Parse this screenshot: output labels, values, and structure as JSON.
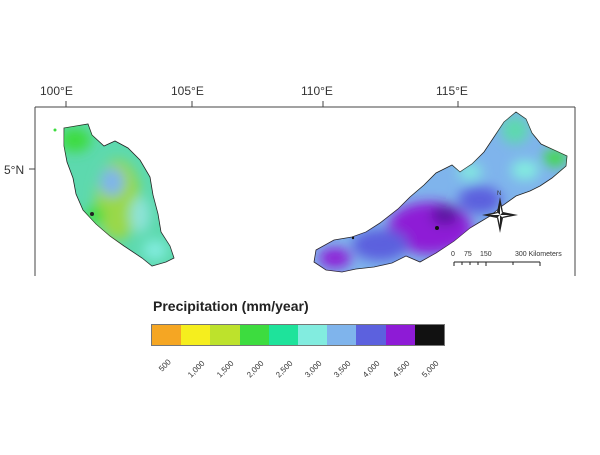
{
  "map": {
    "lon_labels": [
      "100°E",
      "105°E",
      "110°E",
      "115°E"
    ],
    "lat_label": "5°N",
    "north_arrow_letter": "N",
    "scale_bar": {
      "ticks": [
        "0",
        "75",
        "150",
        "300 Kilometers"
      ]
    }
  },
  "legend": {
    "title": "Precipitation (mm/year)",
    "classes": [
      {
        "label": "500",
        "color": "#f5a623"
      },
      {
        "label": "1,000",
        "color": "#f5ee1e"
      },
      {
        "label": "1,500",
        "color": "#bde22c"
      },
      {
        "label": "2,000",
        "color": "#3ddc3f"
      },
      {
        "label": "2,500",
        "color": "#1ee39b"
      },
      {
        "label": "3,000",
        "color": "#82ecdf"
      },
      {
        "label": "3,500",
        "color": "#7fb4ec"
      },
      {
        "label": "4,000",
        "color": "#5c61de"
      },
      {
        "label": "4,500",
        "color": "#8e1bd6"
      },
      {
        "label": "5,000",
        "color": "#111111"
      }
    ]
  },
  "colors": {
    "frame": "#333333",
    "ocean": "#ffffff"
  }
}
